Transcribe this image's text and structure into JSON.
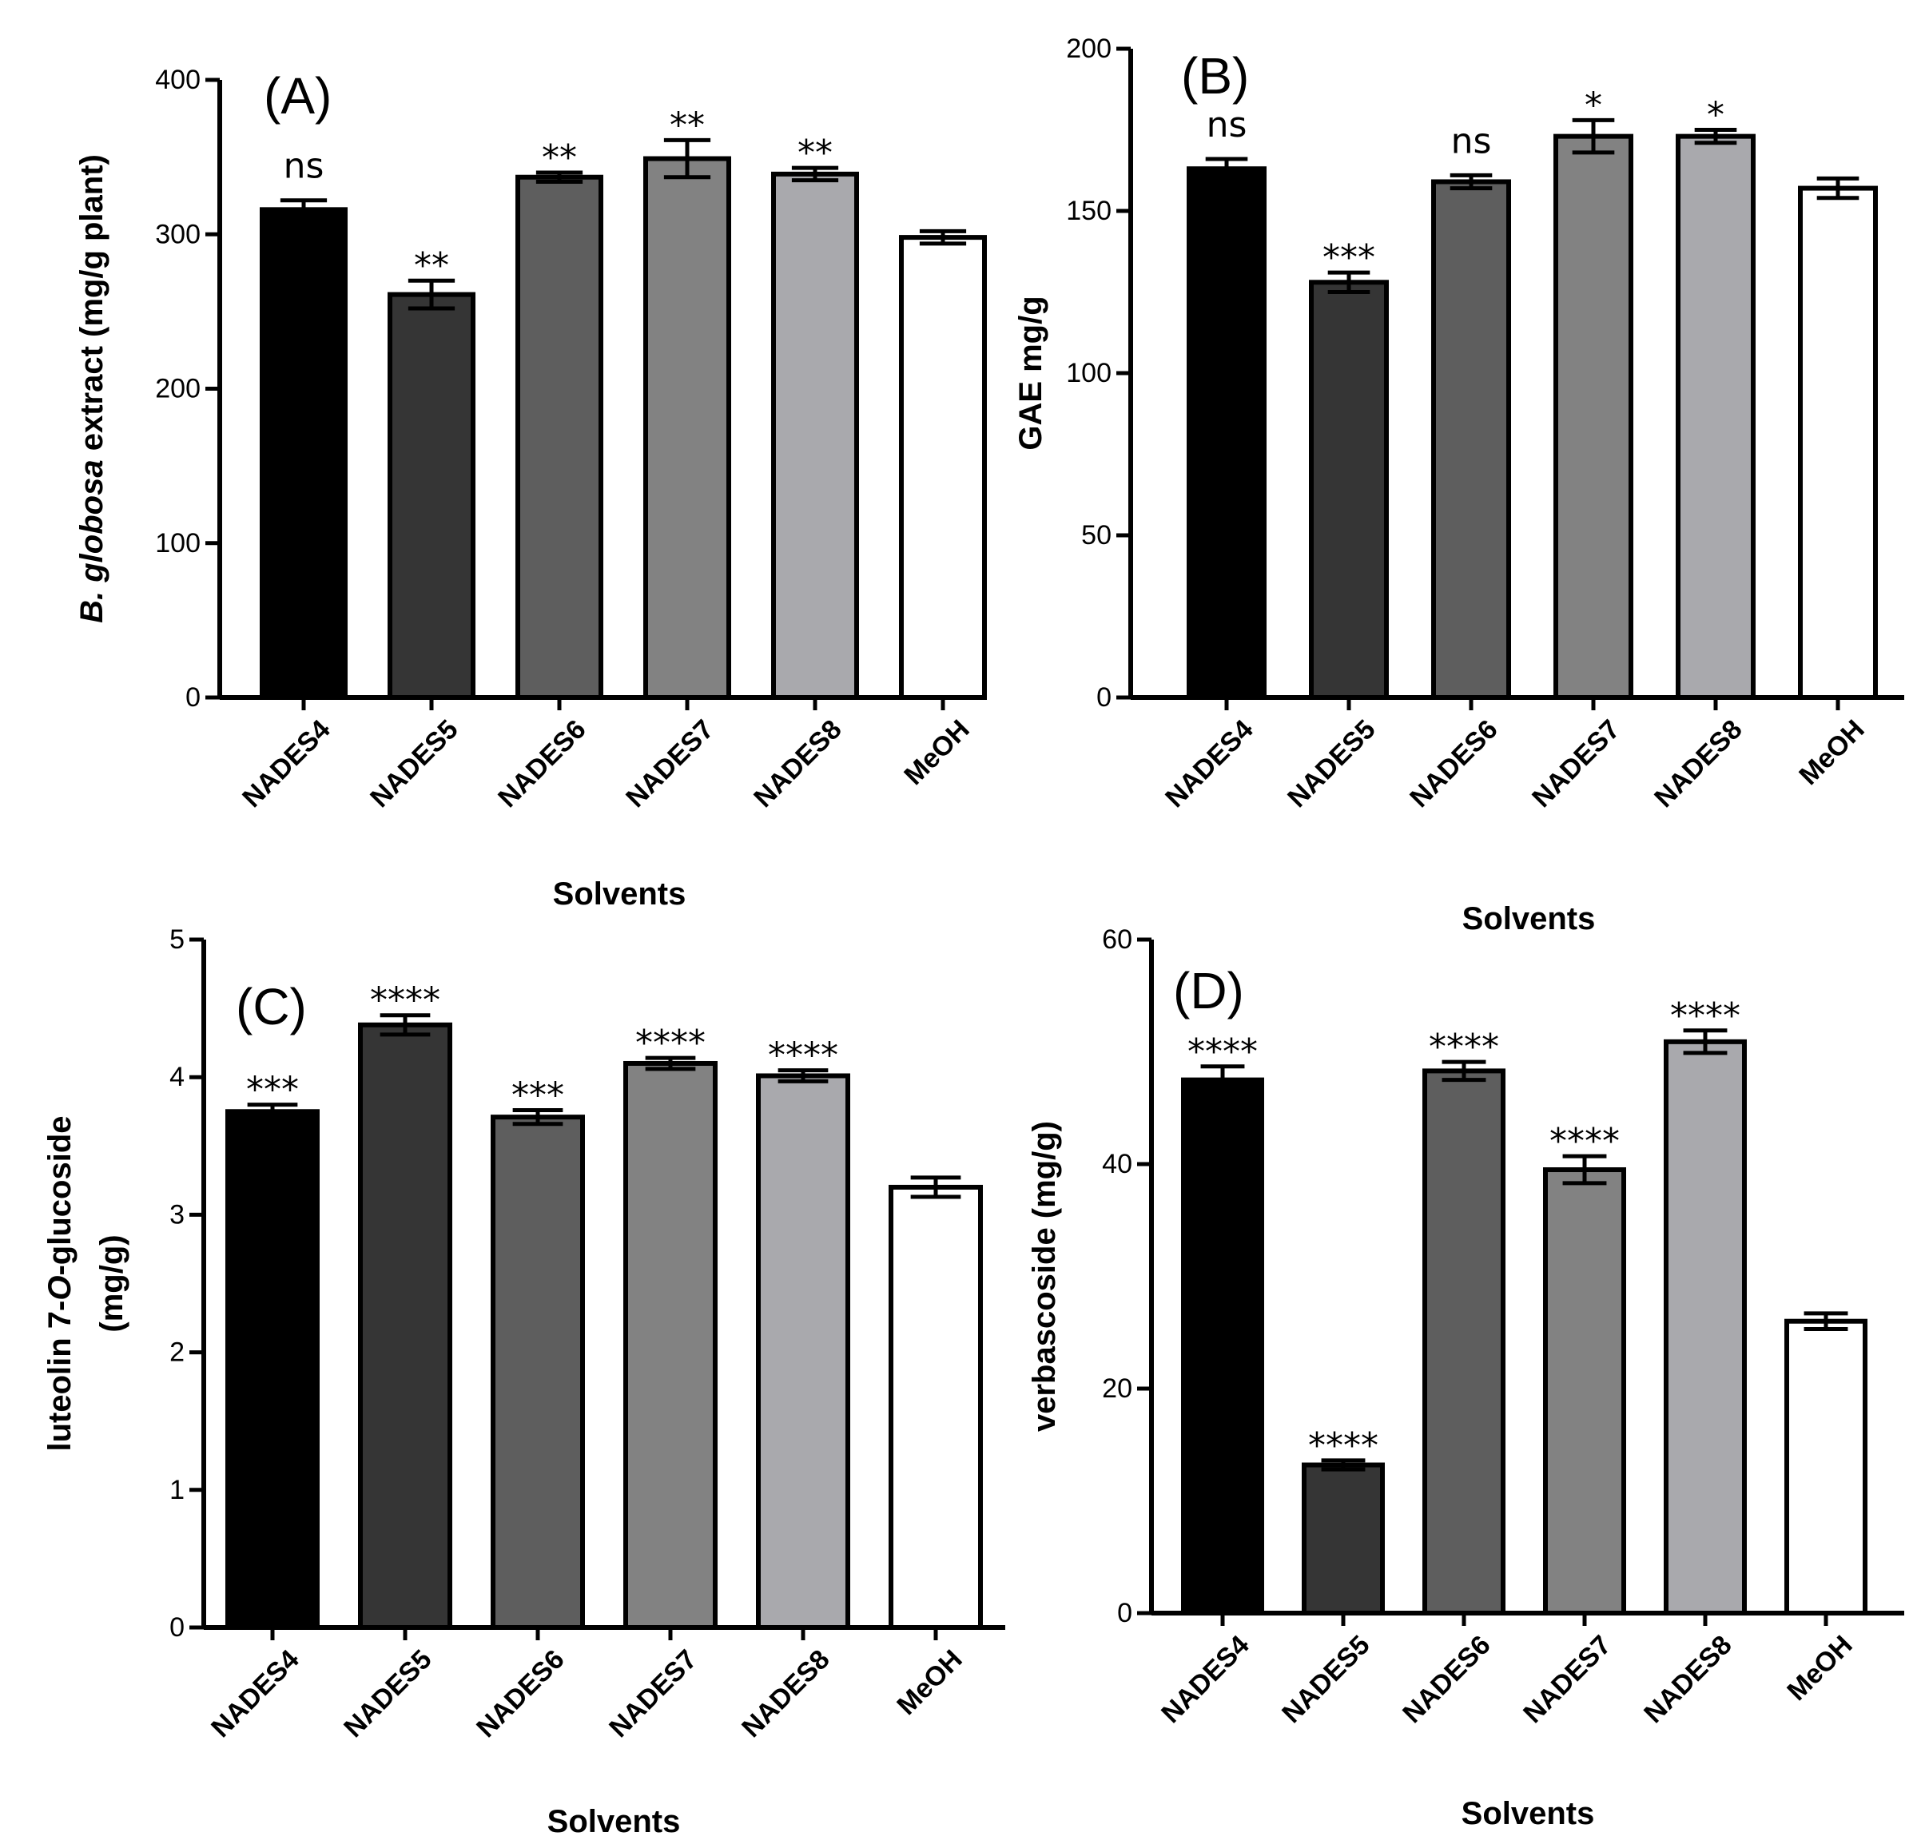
{
  "chart_data": [
    {
      "type": "bar",
      "panel_label": "(A)",
      "ylabel_italic": "B. globosa",
      "ylabel_rest": " extract (mg/g plant)",
      "xlabel": "Solvents",
      "categories": [
        "NADES4",
        "NADES5",
        "NADES6",
        "NADES7",
        "NADES8",
        "MeOH"
      ],
      "values": [
        316,
        261,
        337,
        349,
        339,
        298
      ],
      "errors": [
        6,
        9,
        3,
        12,
        4,
        4
      ],
      "significance": [
        "ns",
        "**",
        "**",
        "**",
        "**",
        ""
      ],
      "ylim": [
        0,
        400
      ],
      "yticks": [
        "0",
        "100",
        "200",
        "300",
        "400"
      ],
      "bar_colors": [
        "#000000",
        "#353535",
        "#5e5e5e",
        "#828282",
        "#a9a9ad",
        "#ffffff"
      ]
    },
    {
      "type": "bar",
      "panel_label": "(B)",
      "ylabel": "GAE mg/g",
      "xlabel": "Solvents",
      "categories": [
        "NADES4",
        "NADES5",
        "NADES6",
        "NADES7",
        "NADES8",
        "MeOH"
      ],
      "values": [
        163,
        128,
        159,
        173,
        173,
        157
      ],
      "errors": [
        3,
        3,
        2,
        5,
        2,
        3
      ],
      "significance": [
        "ns",
        "***",
        "ns",
        "*",
        "*",
        ""
      ],
      "ylim": [
        0,
        200
      ],
      "yticks": [
        "0",
        "50",
        "100",
        "150",
        "200"
      ],
      "bar_colors": [
        "#000000",
        "#353535",
        "#5e5e5e",
        "#828282",
        "#a9a9ad",
        "#ffffff"
      ]
    },
    {
      "type": "bar",
      "panel_label": "(C)",
      "ylabel_line1_pre": "luteolin 7-",
      "ylabel_line1_italic": "O",
      "ylabel_line1_post": "-glucoside",
      "ylabel_line2": "(mg/g)",
      "xlabel": "Solvents",
      "categories": [
        "NADES4",
        "NADES5",
        "NADES6",
        "NADES7",
        "NADES8",
        "MeOH"
      ],
      "values": [
        3.75,
        4.38,
        3.71,
        4.1,
        4.01,
        3.2
      ],
      "errors": [
        0.05,
        0.07,
        0.05,
        0.04,
        0.04,
        0.07
      ],
      "significance": [
        "***",
        "****",
        "***",
        "****",
        "****",
        ""
      ],
      "ylim": [
        0,
        5
      ],
      "yticks": [
        "0",
        "1",
        "2",
        "3",
        "4",
        "5"
      ],
      "bar_colors": [
        "#000000",
        "#353535",
        "#5e5e5e",
        "#828282",
        "#a9a9ad",
        "#ffffff"
      ]
    },
    {
      "type": "bar",
      "panel_label": "(D)",
      "ylabel": "verbascoside (mg/g)",
      "xlabel": "Solvents",
      "categories": [
        "NADES4",
        "NADES5",
        "NADES6",
        "NADES7",
        "NADES8",
        "MeOH"
      ],
      "values": [
        47.5,
        13.2,
        48.3,
        39.5,
        50.9,
        26
      ],
      "errors": [
        1.2,
        0.4,
        0.8,
        1.2,
        1,
        0.7
      ],
      "significance": [
        "****",
        "****",
        "****",
        "****",
        "****",
        ""
      ],
      "ylim": [
        0,
        60
      ],
      "yticks": [
        "0",
        "20",
        "40",
        "60"
      ],
      "bar_colors": [
        "#000000",
        "#353535",
        "#5e5e5e",
        "#828282",
        "#a9a9ad",
        "#ffffff"
      ]
    }
  ]
}
